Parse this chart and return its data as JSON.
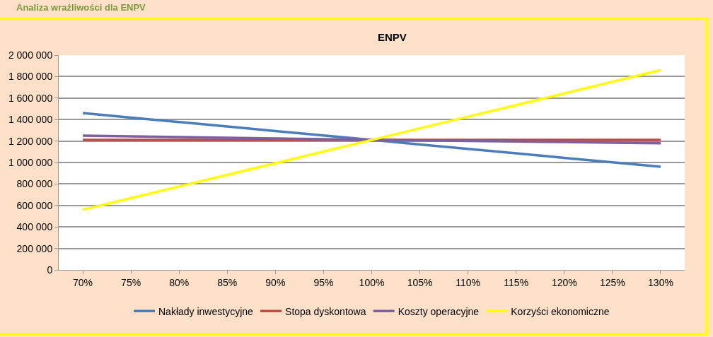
{
  "chart_data": {
    "type": "line",
    "title": "ENPV",
    "annotations": [
      "Analiza wrażliwości dla ENPV"
    ],
    "categories": [
      "70%",
      "75%",
      "80%",
      "85%",
      "90%",
      "95%",
      "100%",
      "105%",
      "110%",
      "115%",
      "120%",
      "125%",
      "130%"
    ],
    "series": [
      {
        "name": "Nakłady inwestycyjne",
        "color": "#4a7ebb",
        "values": [
          1460000,
          1418000,
          1377000,
          1335000,
          1293000,
          1252000,
          1210000,
          1168000,
          1127000,
          1085000,
          1043000,
          1002000,
          960000
        ]
      },
      {
        "name": "Stopa dyskontowa",
        "color": "#be4b48",
        "values": [
          1210000,
          1210000,
          1210000,
          1210000,
          1210000,
          1210000,
          1210000,
          1210000,
          1210000,
          1210000,
          1210000,
          1210000,
          1210000
        ]
      },
      {
        "name": "Koszty operacyjne",
        "color": "#7d60a0",
        "values": [
          1250000,
          1243000,
          1237000,
          1230000,
          1223000,
          1217000,
          1210000,
          1205000,
          1200000,
          1195000,
          1190000,
          1185000,
          1180000
        ]
      },
      {
        "name": "Korzyści ekonomiczne",
        "color": "#ffff00",
        "values": [
          560000,
          668000,
          777000,
          885000,
          993000,
          1102000,
          1210000,
          1318000,
          1427000,
          1535000,
          1643000,
          1752000,
          1860000
        ]
      }
    ],
    "ylim": [
      0,
      2000000
    ],
    "yticks": [
      0,
      {
        "value": 200000,
        "label": "200 000"
      },
      {
        "value": 400000,
        "label": "400 000"
      },
      {
        "value": 600000,
        "label": "600 000"
      },
      {
        "value": 800000,
        "label": "800 000"
      },
      {
        "value": 1000000,
        "label": "1 000 000"
      },
      {
        "value": 1200000,
        "label": "1 200 000"
      },
      {
        "value": 1400000,
        "label": "1 400 000"
      },
      {
        "value": 1600000,
        "label": "1 600 000"
      },
      {
        "value": 1800000,
        "label": "1 800 000"
      },
      {
        "value": 2000000,
        "label": "2 000 000"
      }
    ],
    "grid": "y",
    "legend": "bottom",
    "marker": "none",
    "line_style": "solid"
  }
}
